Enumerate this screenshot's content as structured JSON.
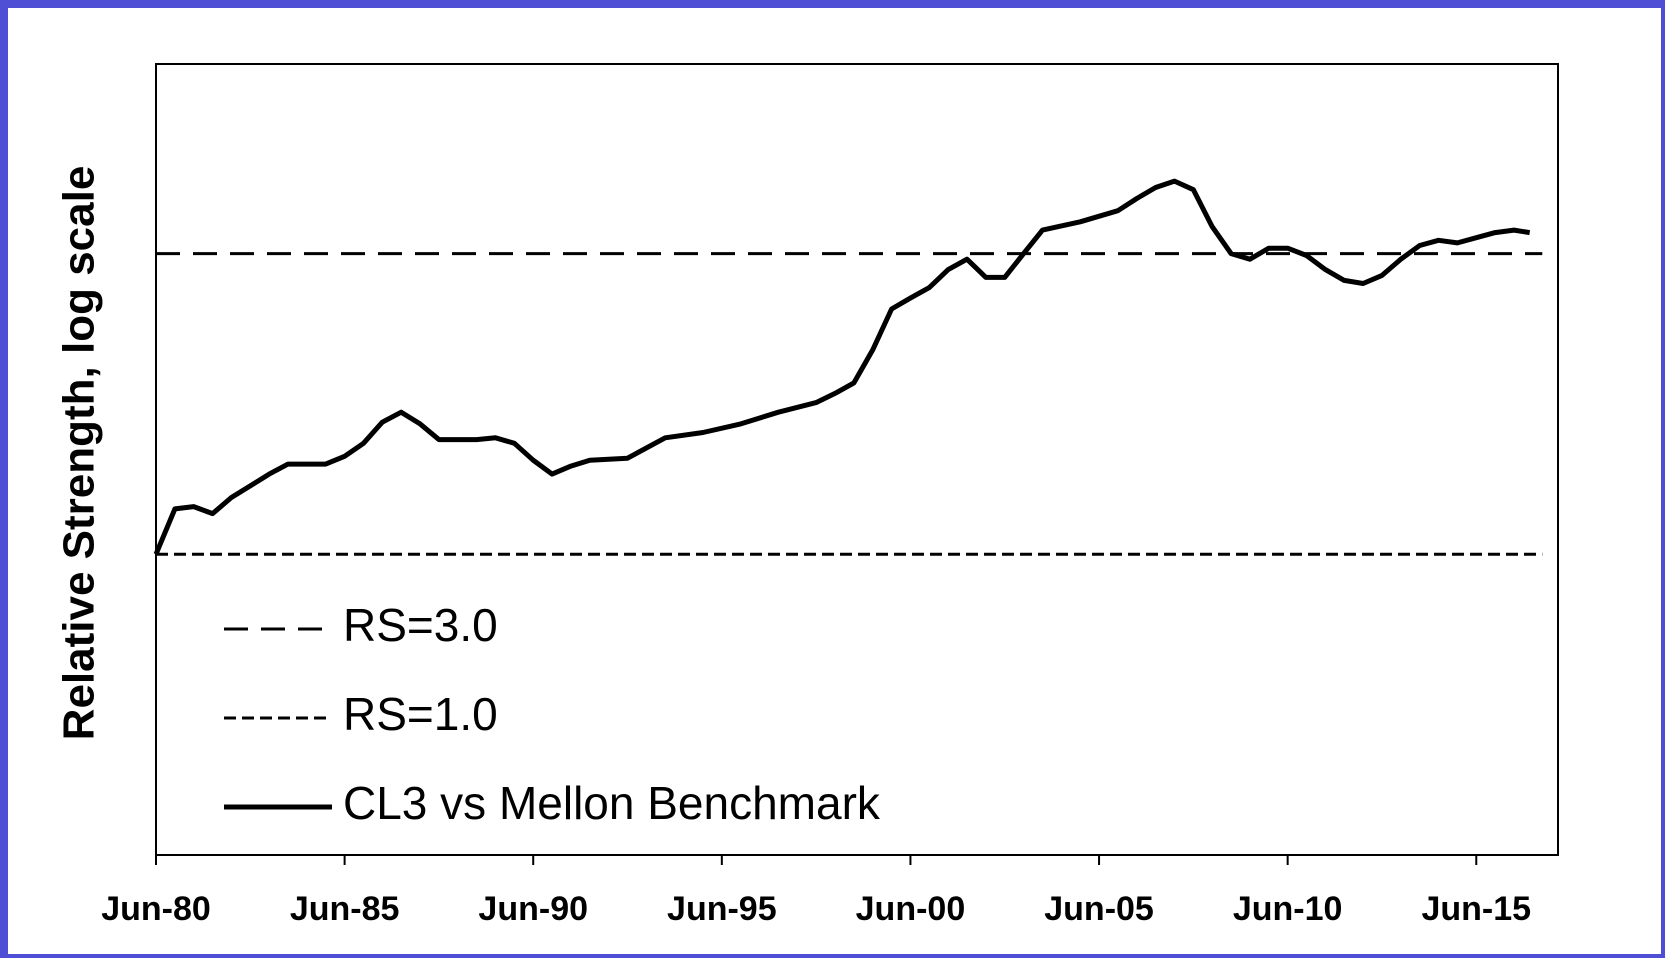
{
  "chart_data": {
    "type": "line",
    "y_label": "Relative Strength, log scale",
    "log_y": true,
    "ylim": [
      0.333,
      6
    ],
    "xlim": [
      "1980-06",
      "2017-08"
    ],
    "xticks": [
      {
        "value": "1980-06",
        "label": "Jun-80"
      },
      {
        "value": "1985-06",
        "label": "Jun-85"
      },
      {
        "value": "1990-06",
        "label": "Jun-90"
      },
      {
        "value": "1995-06",
        "label": "Jun-95"
      },
      {
        "value": "2000-06",
        "label": "Jun-00"
      },
      {
        "value": "2005-06",
        "label": "Jun-05"
      },
      {
        "value": "2010-06",
        "label": "Jun-10"
      },
      {
        "value": "2015-06",
        "label": "Jun-15"
      }
    ],
    "legend": "lower left",
    "series": [
      {
        "name": "RS=3.0",
        "color": "#000000",
        "style": "long-dash",
        "x": [
          "1980-06",
          "2017-03"
        ],
        "values": [
          3.0,
          3.0
        ]
      },
      {
        "name": "RS=1.0",
        "color": "#000000",
        "style": "short-dash",
        "x": [
          "1980-06",
          "2017-03"
        ],
        "values": [
          1.0,
          1.0
        ]
      },
      {
        "name": "CL3 vs Mellon Benchmark",
        "color": "#000000",
        "style": "solid",
        "x": [
          "1980-06",
          "1980-12",
          "1981-06",
          "1981-12",
          "1982-06",
          "1983-06",
          "1983-12",
          "1984-12",
          "1985-06",
          "1985-12",
          "1986-06",
          "1986-12",
          "1987-06",
          "1987-12",
          "1988-12",
          "1989-06",
          "1989-12",
          "1990-06",
          "1990-12",
          "1991-06",
          "1991-12",
          "1992-12",
          "1993-12",
          "1994-12",
          "1995-12",
          "1996-12",
          "1997-12",
          "1998-06",
          "1998-12",
          "1999-06",
          "1999-12",
          "2000-06",
          "2000-12",
          "2001-06",
          "2001-12",
          "2002-06",
          "2002-12",
          "2003-06",
          "2003-12",
          "2004-12",
          "2005-12",
          "2006-06",
          "2006-12",
          "2007-06",
          "2007-12",
          "2008-06",
          "2008-12",
          "2009-06",
          "2009-12",
          "2010-06",
          "2010-12",
          "2011-06",
          "2011-12",
          "2012-06",
          "2012-12",
          "2013-06",
          "2013-12",
          "2014-06",
          "2014-12",
          "2015-06",
          "2015-12",
          "2016-06",
          "2016-11"
        ],
        "values": [
          1.0,
          1.18,
          1.19,
          1.16,
          1.23,
          1.34,
          1.39,
          1.39,
          1.43,
          1.5,
          1.62,
          1.68,
          1.61,
          1.52,
          1.52,
          1.53,
          1.5,
          1.41,
          1.34,
          1.38,
          1.41,
          1.42,
          1.53,
          1.56,
          1.61,
          1.68,
          1.74,
          1.8,
          1.87,
          2.11,
          2.45,
          2.55,
          2.65,
          2.83,
          2.94,
          2.75,
          2.75,
          3.0,
          3.27,
          3.37,
          3.51,
          3.67,
          3.82,
          3.91,
          3.79,
          3.31,
          3.0,
          2.94,
          3.06,
          3.06,
          2.98,
          2.83,
          2.72,
          2.69,
          2.77,
          2.94,
          3.09,
          3.15,
          3.12,
          3.18,
          3.24,
          3.27,
          3.24
        ]
      }
    ]
  }
}
